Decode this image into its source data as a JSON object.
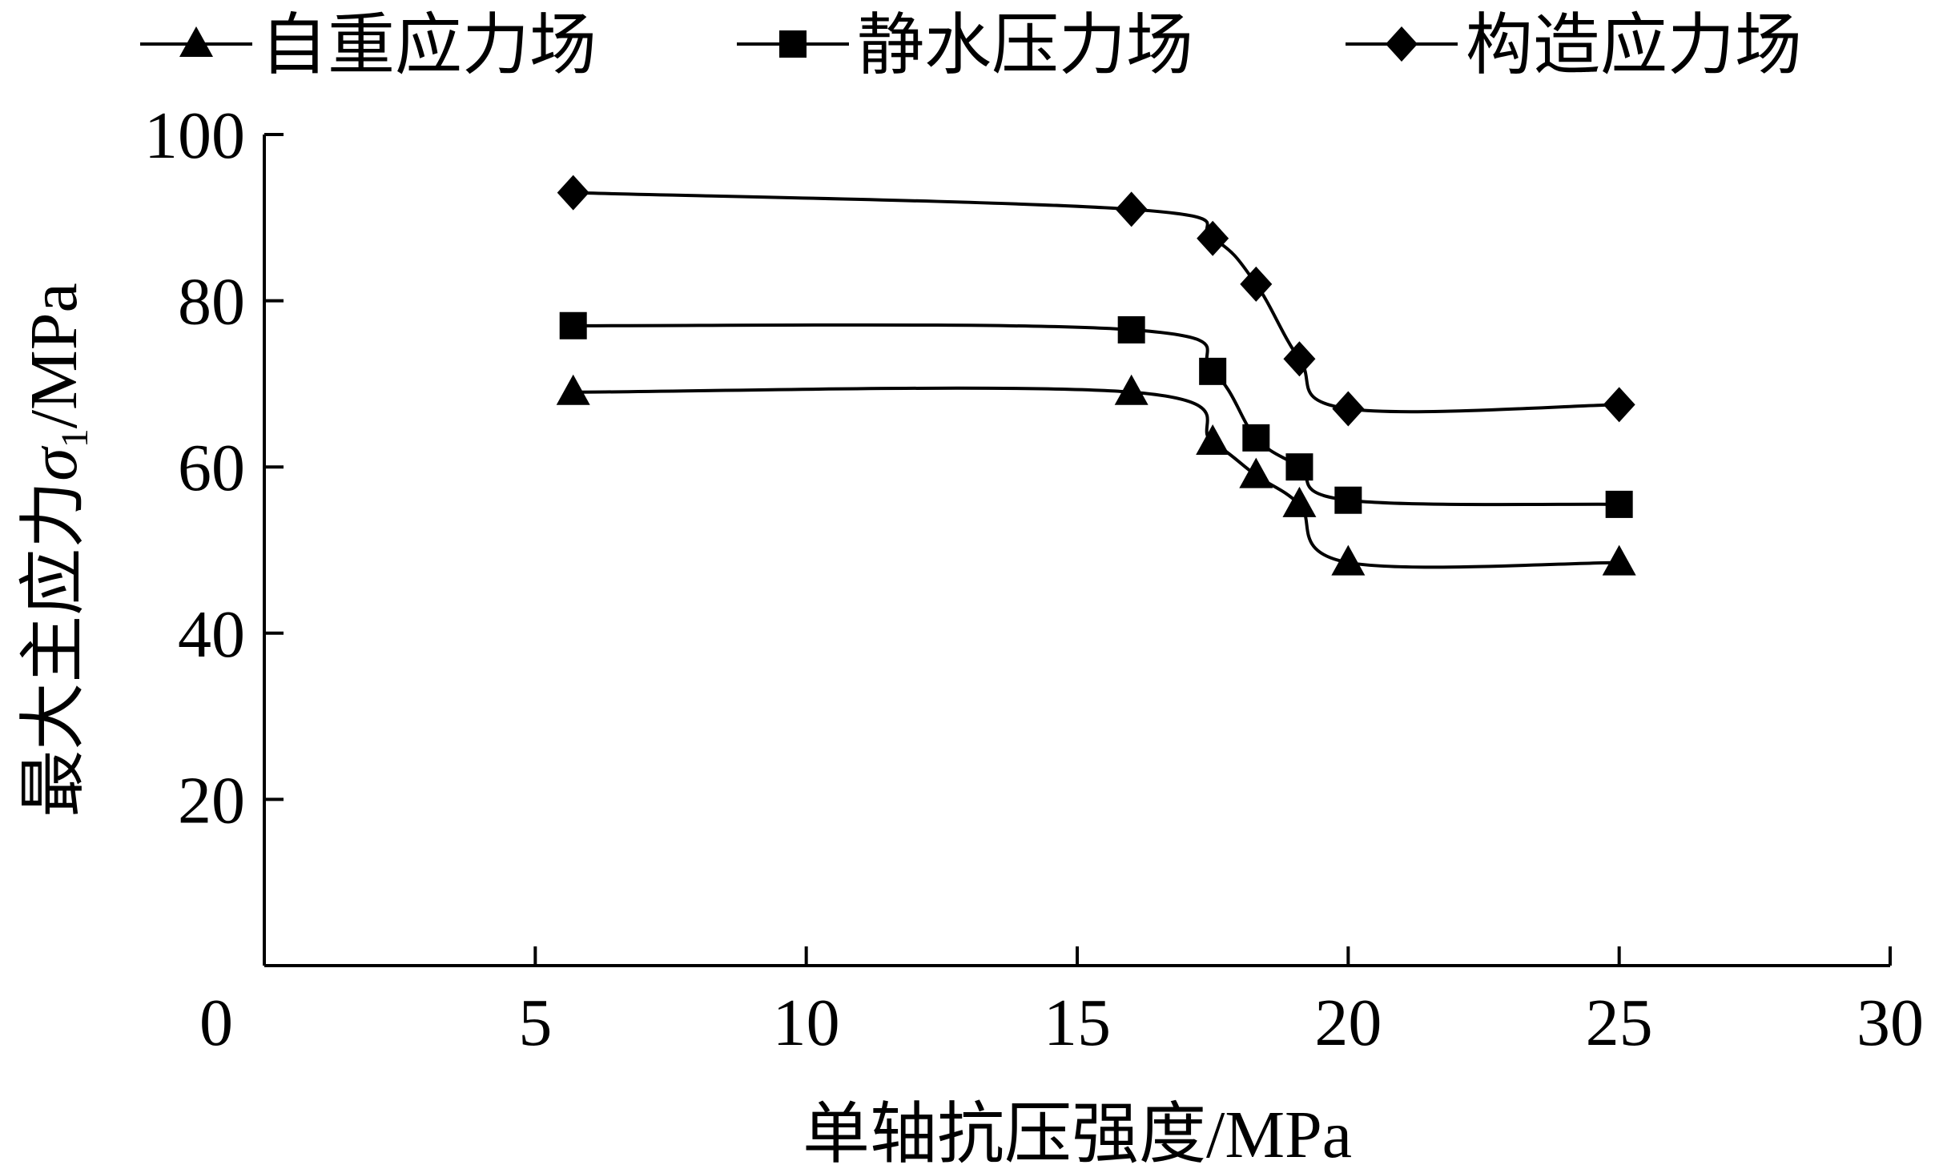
{
  "chart_data": {
    "type": "line",
    "xlabel": "单轴抗压强度/MPa",
    "ylabel_main": "最大主应力",
    "ylabel_symbol": "σ",
    "ylabel_subscript": "1",
    "ylabel_unit": "/MPa",
    "xlim": [
      0,
      30
    ],
    "ylim": [
      0,
      100
    ],
    "x_ticks": [
      0,
      5,
      10,
      15,
      20,
      25,
      30
    ],
    "y_ticks": [
      20,
      40,
      60,
      80,
      100
    ],
    "grid": false,
    "legend_position": "top",
    "series": [
      {
        "name": "自重应力场",
        "marker": "triangle",
        "x": [
          5.7,
          16.0,
          17.5,
          18.3,
          19.1,
          20.0,
          25.0
        ],
        "y": [
          69,
          69,
          63,
          59,
          55.5,
          48.5,
          48.5
        ]
      },
      {
        "name": "静水压力场",
        "marker": "square",
        "x": [
          5.7,
          16.0,
          17.5,
          18.3,
          19.1,
          20.0,
          25.0
        ],
        "y": [
          77,
          76.5,
          71.5,
          63.5,
          60,
          56,
          55.5
        ]
      },
      {
        "name": "构造应力场",
        "marker": "diamond",
        "x": [
          5.7,
          16.0,
          17.5,
          18.3,
          19.1,
          20.0,
          25.0
        ],
        "y": [
          93,
          91,
          87.5,
          82,
          73,
          67,
          67.5
        ]
      }
    ]
  }
}
